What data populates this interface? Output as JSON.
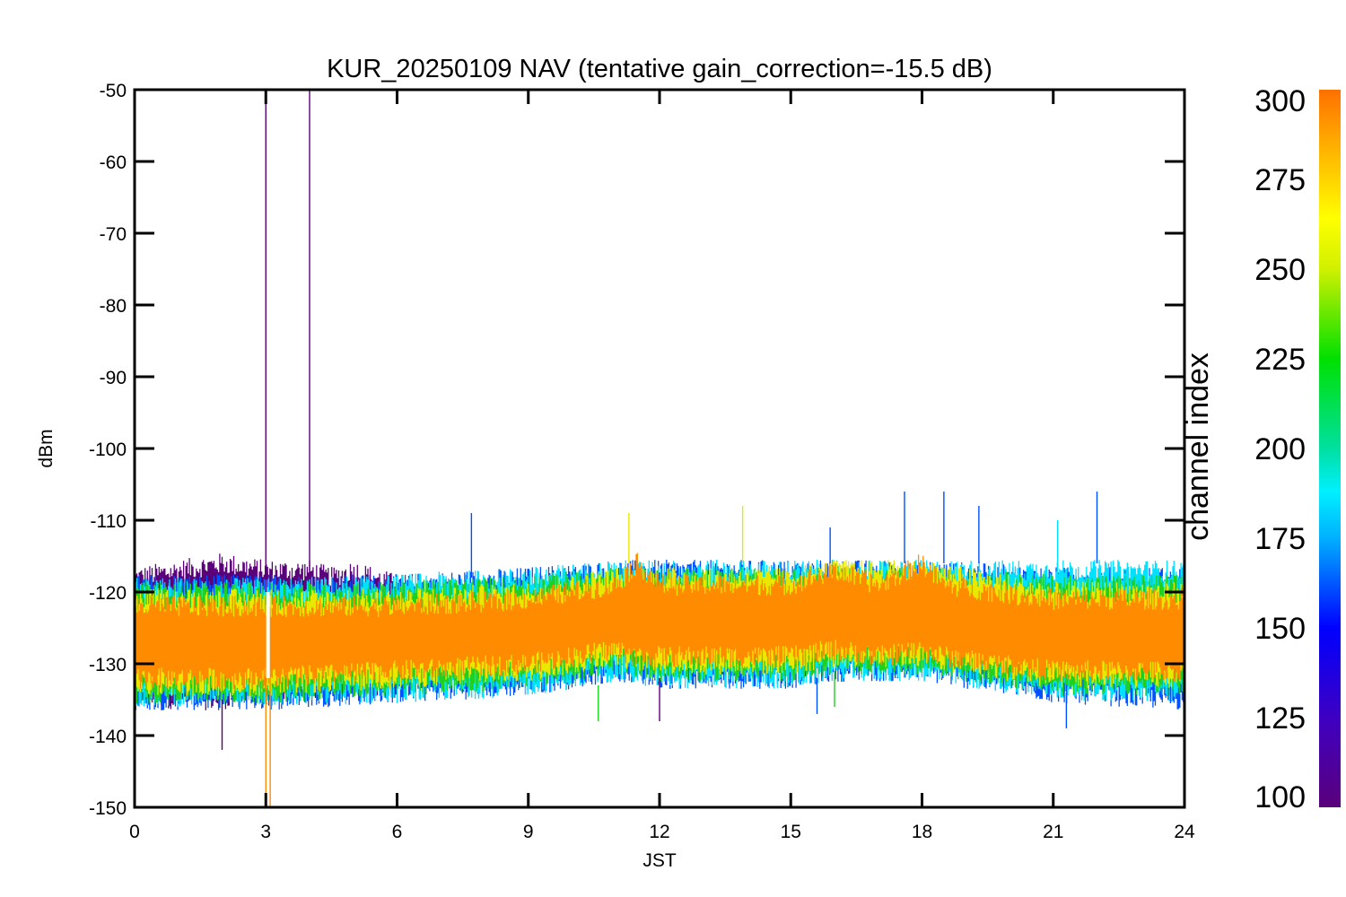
{
  "chart_data": {
    "type": "line",
    "title": "KUR_20250109 NAV (tentative gain_correction=-15.5 dB)",
    "xlabel": "JST",
    "ylabel": "dBm",
    "xlim": [
      0,
      24
    ],
    "ylim": [
      -150,
      -50
    ],
    "xticks": [
      "0",
      "3",
      "6",
      "9",
      "12",
      "15",
      "18",
      "21",
      "24"
    ],
    "yticks": [
      "-50",
      "-60",
      "-70",
      "-80",
      "-90",
      "-100",
      "-110",
      "-120",
      "-130",
      "-140",
      "-150"
    ],
    "colorbar": {
      "label": "channel index",
      "range": [
        100,
        300
      ],
      "ticks": [
        "300",
        "275",
        "250",
        "225",
        "200",
        "175",
        "150",
        "125",
        "100"
      ]
    },
    "series": [
      {
        "channel_index": 100,
        "color": "#5a007a",
        "x": [
          0,
          1,
          2,
          2.5,
          3,
          3.5,
          4,
          4.5,
          5,
          5.5,
          6
        ],
        "y_upper": [
          -118,
          -117,
          -116,
          -116.5,
          -117,
          -117,
          -117,
          -118,
          -117,
          -118,
          -119
        ],
        "y_lower": [
          -134,
          -135,
          -135,
          -134,
          -134,
          -134,
          -134,
          -133,
          -133,
          -133,
          -133
        ]
      },
      {
        "channel_index": 150,
        "color": "#0050ff",
        "x": [
          0,
          3,
          6,
          9,
          11,
          12,
          14,
          15,
          16,
          18,
          21,
          24
        ],
        "y_upper": [
          -119,
          -119,
          -119,
          -118,
          -117,
          -117,
          -117,
          -117,
          -117,
          -117,
          -118,
          -118
        ],
        "y_lower": [
          -135,
          -135,
          -134,
          -133,
          -131,
          -132,
          -132,
          -132,
          -131,
          -131,
          -134,
          -135
        ]
      },
      {
        "channel_index": 175,
        "color": "#00e0ff",
        "x": [
          0,
          3,
          6,
          9,
          11,
          12,
          14,
          15,
          16,
          18,
          21,
          24
        ],
        "y_upper": [
          -119.5,
          -119.5,
          -119,
          -118,
          -117,
          -117,
          -117,
          -117,
          -117,
          -117,
          -117,
          -117
        ],
        "y_lower": [
          -134.5,
          -134.5,
          -134,
          -133,
          -131,
          -132,
          -132,
          -132,
          -131,
          -131,
          -133.5,
          -134
        ]
      },
      {
        "channel_index": 225,
        "color": "#20d020",
        "x": [
          0,
          3,
          6,
          9,
          11,
          12,
          14,
          15,
          16,
          18,
          21,
          24
        ],
        "y_upper": [
          -120,
          -120,
          -120,
          -119,
          -118,
          -118,
          -118,
          -118,
          -118,
          -118,
          -119,
          -119
        ],
        "y_lower": [
          -134,
          -134,
          -133,
          -132,
          -130,
          -131,
          -131,
          -131,
          -130,
          -130,
          -133,
          -133
        ]
      },
      {
        "channel_index": 265,
        "color": "#e8e800",
        "x": [
          0,
          3,
          6,
          9,
          11,
          12,
          14,
          15,
          16,
          18,
          21,
          24
        ],
        "y_upper": [
          -121,
          -121,
          -121,
          -120,
          -118,
          -118,
          -118,
          -118,
          -117,
          -117,
          -120,
          -120
        ],
        "y_lower": [
          -133,
          -133,
          -132,
          -131,
          -129,
          -130,
          -130,
          -130,
          -129,
          -129,
          -132,
          -132
        ]
      },
      {
        "channel_index": 300,
        "color": "#ff8c00",
        "x": [
          0,
          3,
          6,
          9,
          11,
          11.5,
          12,
          14,
          15,
          16,
          17,
          18,
          18.5,
          21,
          24
        ],
        "y_upper": [
          -122,
          -122,
          -122,
          -121,
          -119,
          -116,
          -119,
          -119,
          -119,
          -117,
          -119,
          -116,
          -119,
          -121,
          -121
        ],
        "y_lower": [
          -132,
          -132,
          -131,
          -130,
          -128,
          -129,
          -129,
          -129,
          -129,
          -128,
          -129,
          -128,
          -129,
          -131,
          -131
        ]
      }
    ],
    "spikes": [
      {
        "x": 3.0,
        "y_top": -50,
        "y_bottom": -120,
        "color": "#5a007a"
      },
      {
        "x": 4.0,
        "y_top": -50,
        "y_bottom": -118,
        "color": "#5a007a"
      },
      {
        "x": 3.0,
        "y_top": -130,
        "y_bottom": -150,
        "color": "#ff8c00"
      },
      {
        "x": 3.1,
        "y_top": -130,
        "y_bottom": -150,
        "color": "#ff8c00"
      },
      {
        "x": 7.7,
        "y_top": -109,
        "y_bottom": -118,
        "color": "#0050ff"
      },
      {
        "x": 11.3,
        "y_top": -109,
        "y_bottom": -116,
        "color": "#e8e800"
      },
      {
        "x": 13.9,
        "y_top": -108,
        "y_bottom": -116,
        "color": "#e8e800"
      },
      {
        "x": 15.9,
        "y_top": -111,
        "y_bottom": -116,
        "color": "#0050ff"
      },
      {
        "x": 16.0,
        "y_top": -131,
        "y_bottom": -136,
        "color": "#20d020"
      },
      {
        "x": 17.6,
        "y_top": -106,
        "y_bottom": -116,
        "color": "#0050ff"
      },
      {
        "x": 18.5,
        "y_top": -106,
        "y_bottom": -116,
        "color": "#0050ff"
      },
      {
        "x": 19.3,
        "y_top": -108,
        "y_bottom": -116,
        "color": "#0050ff"
      },
      {
        "x": 21.1,
        "y_top": -110,
        "y_bottom": -117,
        "color": "#00e0ff"
      },
      {
        "x": 22.0,
        "y_top": -106,
        "y_bottom": -116,
        "color": "#0050ff"
      },
      {
        "x": 2.0,
        "y_top": -135,
        "y_bottom": -142,
        "color": "#5a007a"
      },
      {
        "x": 10.6,
        "y_top": -133,
        "y_bottom": -138,
        "color": "#20d020"
      },
      {
        "x": 12.0,
        "y_top": -132,
        "y_bottom": -138,
        "color": "#5a007a"
      },
      {
        "x": 15.6,
        "y_top": -132,
        "y_bottom": -137,
        "color": "#0050ff"
      },
      {
        "x": 21.3,
        "y_top": -134,
        "y_bottom": -139,
        "color": "#0050ff"
      }
    ],
    "gap": {
      "x": 3.05,
      "y_top": -120,
      "y_bottom": -132
    },
    "grid": false,
    "legend": "colorbar-right"
  }
}
